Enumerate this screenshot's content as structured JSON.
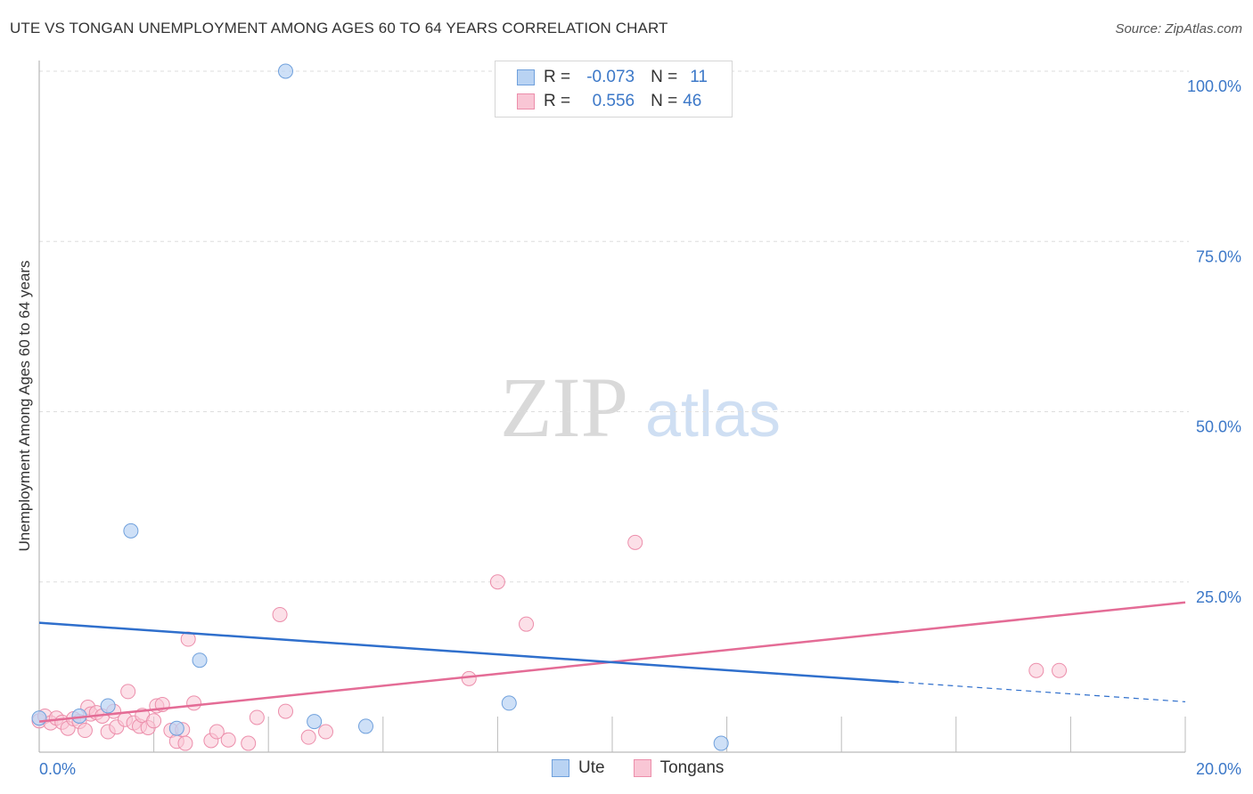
{
  "title": "UTE VS TONGAN UNEMPLOYMENT AMONG AGES 60 TO 64 YEARS CORRELATION CHART",
  "source": "Source: ZipAtlas.com",
  "watermark": {
    "zip": "ZIP",
    "atlas": "atlas"
  },
  "legend": {
    "rows": [
      {
        "r_label": "R =",
        "r_value": "-0.073",
        "n_label": "N =",
        "n_value": "11"
      },
      {
        "r_label": "R =",
        "r_value": "0.556",
        "n_label": "N =",
        "n_value": "46"
      }
    ]
  },
  "bottom_legend": [
    "Ute",
    "Tongans"
  ],
  "colors": {
    "ute_fill": "#b9d3f3",
    "ute_stroke": "#6fa0dc",
    "ute_line": "#2f6fcc",
    "tongan_fill": "#f9c6d5",
    "tongan_stroke": "#ec8eab",
    "tongan_line": "#e46c96",
    "axis_label": "#3c78c8",
    "grid": "#dddddd"
  },
  "chart_data": {
    "type": "scatter",
    "title": "UTE VS TONGAN UNEMPLOYMENT AMONG AGES 60 TO 64 YEARS CORRELATION CHART",
    "xlabel": "",
    "ylabel": "Unemployment Among Ages 60 to 64 years",
    "xlim": [
      0,
      20
    ],
    "ylim": [
      0,
      100
    ],
    "x_tick_labels": [
      "0.0%",
      "20.0%"
    ],
    "y_tick_labels": [
      "25.0%",
      "50.0%",
      "75.0%",
      "100.0%"
    ],
    "y_ticks": [
      25,
      50,
      75,
      100
    ],
    "series": [
      {
        "name": "Ute",
        "r": -0.073,
        "n": 11,
        "points": [
          [
            0.0,
            5.0
          ],
          [
            0.7,
            5.3
          ],
          [
            1.2,
            6.8
          ],
          [
            1.6,
            32.5
          ],
          [
            2.4,
            3.5
          ],
          [
            2.8,
            13.5
          ],
          [
            4.3,
            100.0
          ],
          [
            4.8,
            4.5
          ],
          [
            5.7,
            3.8
          ],
          [
            8.2,
            7.2
          ],
          [
            11.9,
            1.3
          ]
        ],
        "trend": {
          "x0": 0,
          "y0": 19.0,
          "x1": 15.0,
          "y1": 10.3,
          "x_end": 20.0,
          "y_end": 7.4
        }
      },
      {
        "name": "Tongans",
        "r": 0.556,
        "n": 46,
        "points": [
          [
            0.0,
            4.6
          ],
          [
            0.1,
            5.3
          ],
          [
            0.2,
            4.3
          ],
          [
            0.3,
            5.0
          ],
          [
            0.4,
            4.4
          ],
          [
            0.5,
            3.5
          ],
          [
            0.6,
            4.9
          ],
          [
            0.7,
            4.5
          ],
          [
            0.8,
            3.2
          ],
          [
            0.85,
            6.6
          ],
          [
            0.9,
            5.6
          ],
          [
            1.0,
            5.8
          ],
          [
            1.1,
            5.3
          ],
          [
            1.2,
            3.0
          ],
          [
            1.3,
            6.0
          ],
          [
            1.35,
            3.7
          ],
          [
            1.5,
            4.8
          ],
          [
            1.55,
            8.9
          ],
          [
            1.65,
            4.3
          ],
          [
            1.75,
            3.8
          ],
          [
            1.8,
            5.4
          ],
          [
            1.9,
            3.6
          ],
          [
            2.0,
            4.6
          ],
          [
            2.05,
            6.8
          ],
          [
            2.15,
            7.0
          ],
          [
            2.3,
            3.2
          ],
          [
            2.4,
            1.6
          ],
          [
            2.5,
            3.3
          ],
          [
            2.55,
            1.3
          ],
          [
            2.6,
            16.6
          ],
          [
            2.7,
            7.2
          ],
          [
            3.0,
            1.7
          ],
          [
            3.1,
            3.0
          ],
          [
            3.3,
            1.8
          ],
          [
            3.65,
            1.3
          ],
          [
            3.8,
            5.1
          ],
          [
            4.2,
            20.2
          ],
          [
            4.3,
            6.0
          ],
          [
            4.7,
            2.2
          ],
          [
            5.0,
            3.0
          ],
          [
            7.5,
            10.8
          ],
          [
            8.0,
            25.0
          ],
          [
            8.5,
            18.8
          ],
          [
            10.4,
            30.8
          ],
          [
            17.4,
            12.0
          ],
          [
            17.8,
            12.0
          ]
        ],
        "trend": {
          "x0": 0,
          "y0": 4.5,
          "x1": 20.0,
          "y1": 22.0
        }
      }
    ]
  }
}
